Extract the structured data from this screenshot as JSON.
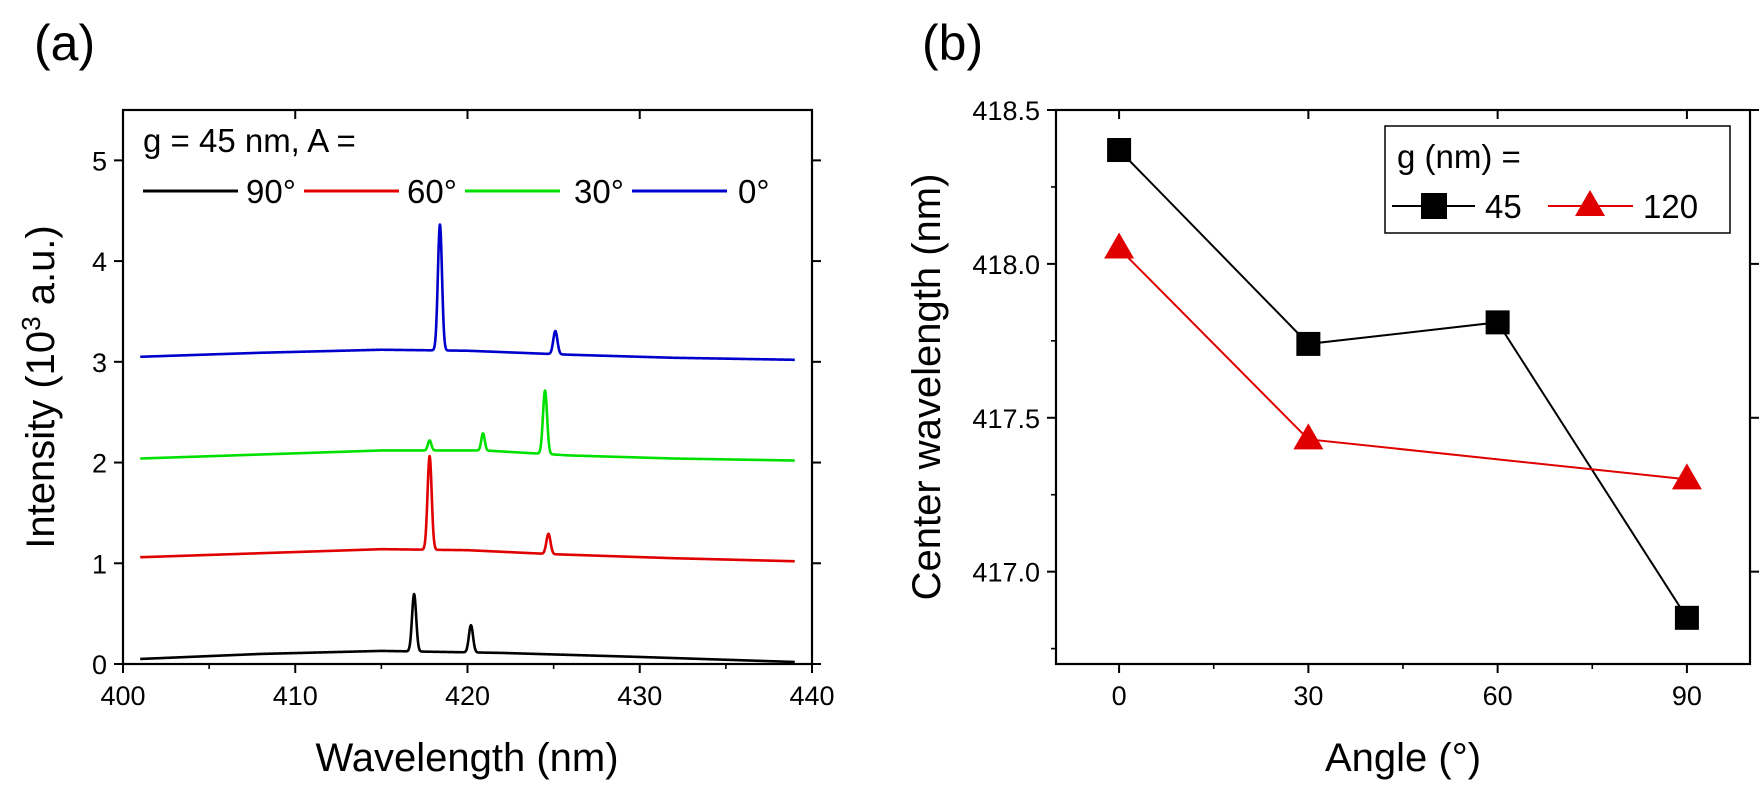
{
  "chart_data": [
    {
      "panel_label": "(a)",
      "type": "line",
      "title": "",
      "xlabel": "Wavelength (nm)",
      "ylabel_main": "Intensity (10",
      "ylabel_sup": "3",
      "ylabel_tail": " a.u.)",
      "xlim": [
        400,
        440
      ],
      "ylim": [
        0,
        5.5
      ],
      "xticks": [
        400,
        410,
        420,
        430,
        440
      ],
      "xtick_labels": [
        "400",
        "410",
        "420",
        "430",
        "440"
      ],
      "yticks": [
        0,
        1,
        2,
        3,
        4,
        5
      ],
      "ytick_labels": [
        "0",
        "1",
        "2",
        "3",
        "4",
        "5"
      ],
      "grid": false,
      "legend_title": "g = 45 nm, A =",
      "legend_position": "top",
      "x_range": [
        401,
        439
      ],
      "series": [
        {
          "name": "90°",
          "color": "#000000",
          "baseline": [
            [
              401,
              0.05
            ],
            [
              408,
              0.1
            ],
            [
              415,
              0.13
            ],
            [
              422,
              0.11
            ],
            [
              430,
              0.07
            ],
            [
              439,
              0.02
            ]
          ],
          "peaks": [
            {
              "x": 416.9,
              "h": 0.57,
              "w": 0.12
            },
            {
              "x": 420.2,
              "h": 0.27,
              "w": 0.12
            }
          ]
        },
        {
          "name": "60°",
          "color": "#e00000",
          "baseline": [
            [
              401,
              1.06
            ],
            [
              408,
              1.1
            ],
            [
              415,
              1.14
            ],
            [
              420,
              1.13
            ],
            [
              425,
              1.09
            ],
            [
              432,
              1.05
            ],
            [
              439,
              1.02
            ]
          ],
          "peaks": [
            {
              "x": 417.8,
              "h": 0.93,
              "w": 0.12
            },
            {
              "x": 424.7,
              "h": 0.2,
              "w": 0.12
            }
          ]
        },
        {
          "name": "30°",
          "color": "#00e000",
          "baseline": [
            [
              401,
              2.04
            ],
            [
              408,
              2.08
            ],
            [
              415,
              2.12
            ],
            [
              421,
              2.12
            ],
            [
              426,
              2.07
            ],
            [
              432,
              2.04
            ],
            [
              439,
              2.02
            ]
          ],
          "peaks": [
            {
              "x": 417.8,
              "h": 0.1,
              "w": 0.1
            },
            {
              "x": 420.9,
              "h": 0.17,
              "w": 0.1
            },
            {
              "x": 424.5,
              "h": 0.63,
              "w": 0.12
            }
          ]
        },
        {
          "name": "0°",
          "color": "#0000cc",
          "baseline": [
            [
              401,
              3.05
            ],
            [
              408,
              3.09
            ],
            [
              415,
              3.12
            ],
            [
              420,
              3.11
            ],
            [
              426,
              3.07
            ],
            [
              432,
              3.04
            ],
            [
              439,
              3.02
            ]
          ],
          "peaks": [
            {
              "x": 418.4,
              "h": 1.25,
              "w": 0.12
            },
            {
              "x": 425.1,
              "h": 0.23,
              "w": 0.12
            }
          ]
        }
      ]
    },
    {
      "panel_label": "(b)",
      "type": "line",
      "title": "",
      "xlabel": "Angle (°)",
      "ylabel": "Center wavelength (nm)",
      "xlim": [
        -10,
        100
      ],
      "ylim": [
        416.7,
        418.5
      ],
      "xticks": [
        0,
        30,
        60,
        90
      ],
      "xtick_labels": [
        "0",
        "30",
        "60",
        "90"
      ],
      "yticks": [
        417.0,
        417.5,
        418.0,
        418.5
      ],
      "ytick_labels": [
        "417.0",
        "417.5",
        "418.0",
        "418.5"
      ],
      "grid": false,
      "legend_title": "g (nm) =",
      "legend_position": "top-right",
      "series": [
        {
          "name": "45",
          "color": "#000000",
          "marker": "square",
          "x": [
            0,
            30,
            60,
            90
          ],
          "y": [
            418.37,
            417.74,
            417.81,
            416.85
          ]
        },
        {
          "name": "120",
          "color": "#e00000",
          "marker": "triangle",
          "x": [
            0,
            30,
            90
          ],
          "y": [
            418.05,
            417.43,
            417.3
          ]
        }
      ]
    }
  ]
}
